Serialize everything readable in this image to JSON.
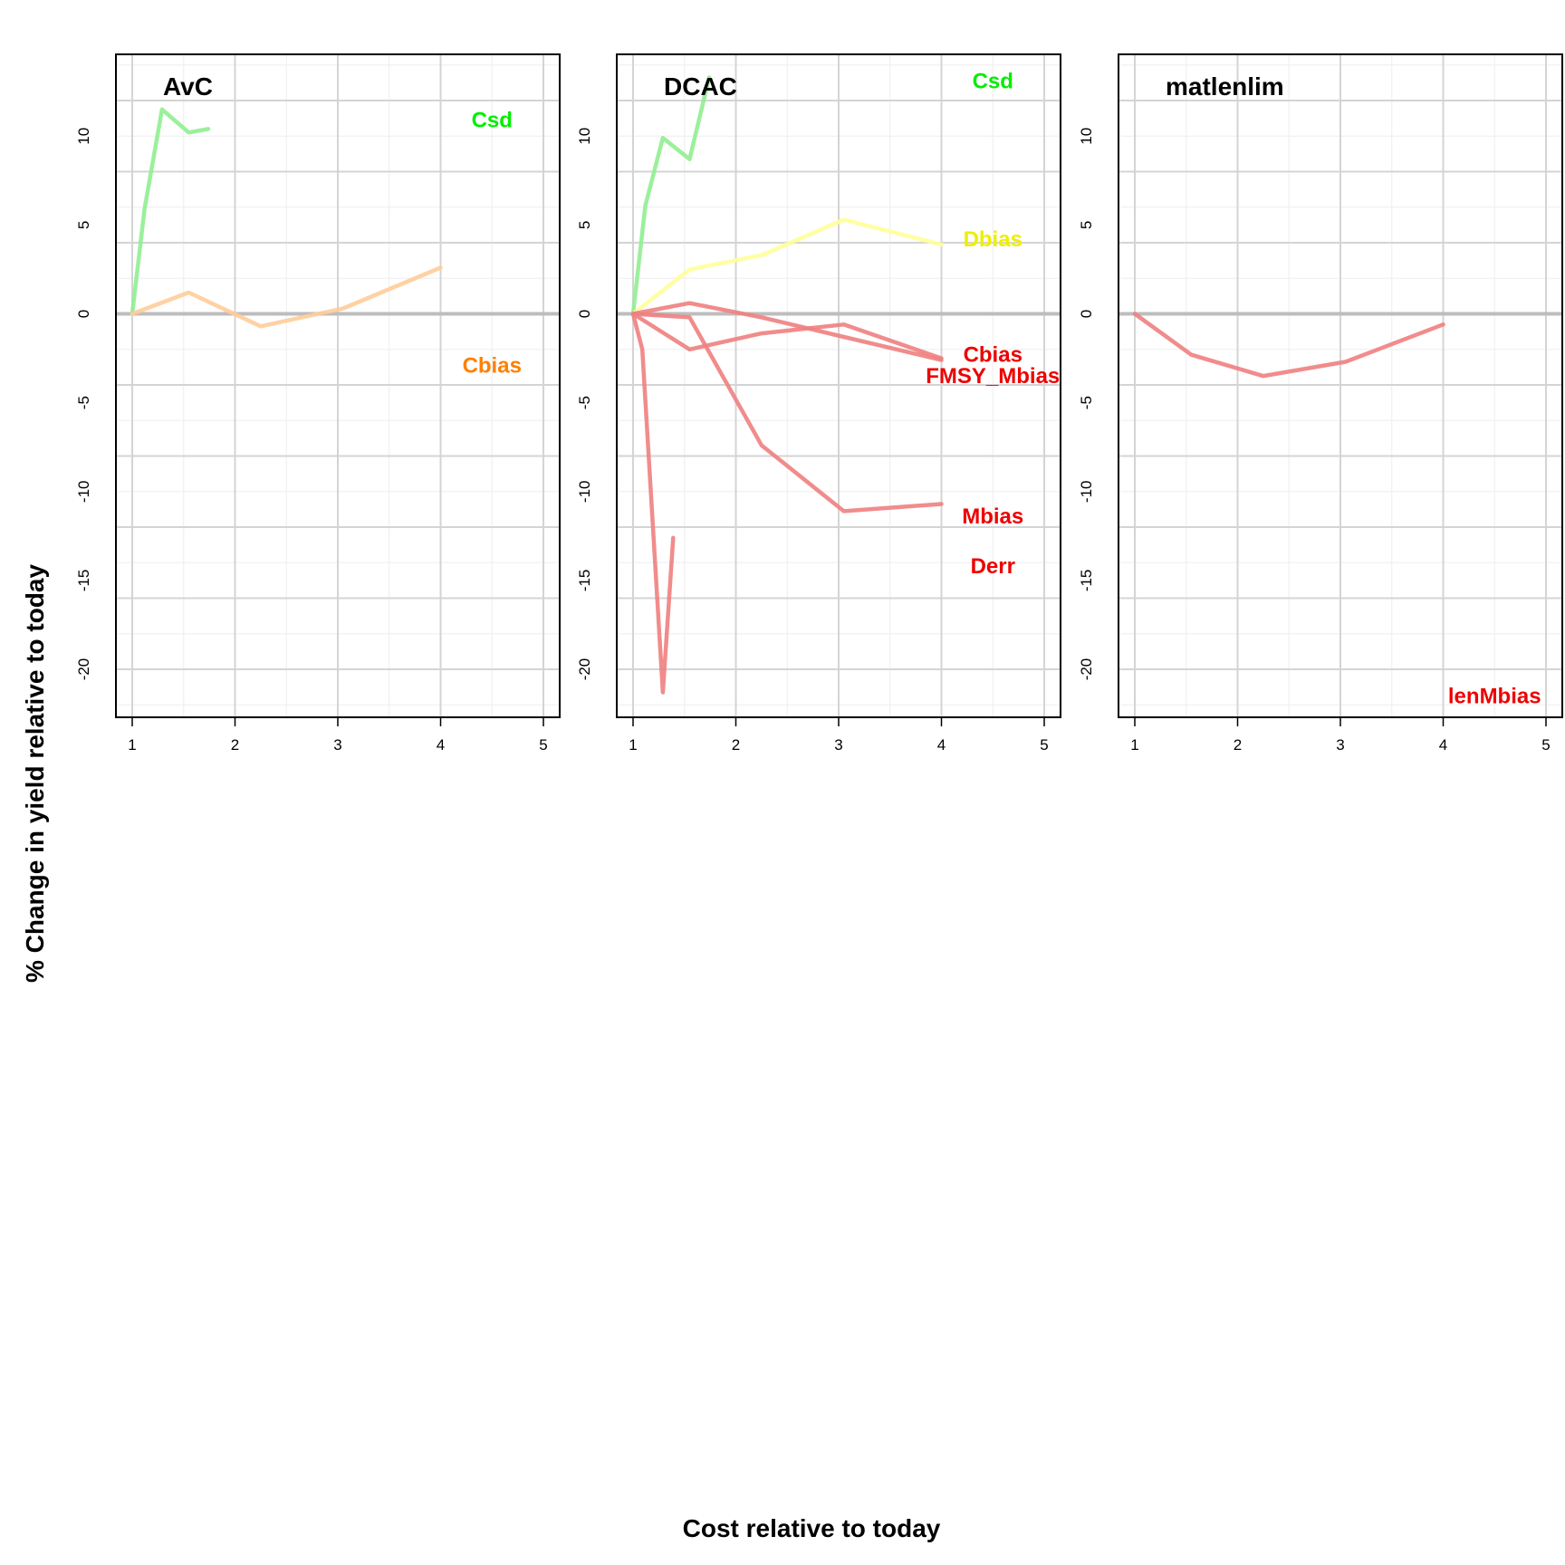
{
  "xlabel": "Cost relative to today",
  "ylabel": "% Change in yield relative to today",
  "chart_data": [
    {
      "type": "line",
      "title": "AvC",
      "xlim": [
        1,
        5
      ],
      "ylim": [
        -22.7,
        14.6
      ],
      "x_ticks": [
        1,
        2,
        3,
        4,
        5
      ],
      "y_ticks": [
        -20,
        -15,
        -10,
        -5,
        0,
        5,
        10
      ],
      "series": [
        {
          "name": "Csd",
          "color": "#90EE90",
          "label_color": "#00EE00",
          "label_pos": [
            4.5,
            10.9
          ],
          "x": [
            1.0,
            1.12,
            1.29,
            1.55,
            1.74
          ],
          "y": [
            0.0,
            5.9,
            11.5,
            10.2,
            10.4
          ]
        },
        {
          "name": "Cbias",
          "color": "#FFCC99",
          "label_color": "#FF7F00",
          "label_pos": [
            4.5,
            -2.9
          ],
          "x": [
            1.0,
            1.55,
            2.25,
            3.05,
            4.0
          ],
          "y": [
            0.0,
            1.2,
            -0.7,
            0.3,
            2.6
          ]
        }
      ]
    },
    {
      "type": "line",
      "title": "DCAC",
      "xlim": [
        1,
        5
      ],
      "ylim": [
        -22.7,
        14.6
      ],
      "x_ticks": [
        1,
        2,
        3,
        4,
        5
      ],
      "y_ticks": [
        -20,
        -15,
        -10,
        -5,
        0,
        5,
        10
      ],
      "series": [
        {
          "name": "Csd",
          "color": "#90EE90",
          "label_color": "#00EE00",
          "label_pos": [
            4.5,
            13.1
          ],
          "x": [
            1.0,
            1.12,
            1.29,
            1.55,
            1.74
          ],
          "y": [
            0.0,
            6.1,
            9.9,
            8.7,
            13.3
          ]
        },
        {
          "name": "Dbias",
          "color": "#FFFF99",
          "label_color": "#EEEE00",
          "label_pos": [
            4.5,
            4.2
          ],
          "x": [
            1.0,
            1.55,
            2.25,
            3.05,
            4.0
          ],
          "y": [
            0.0,
            2.5,
            3.3,
            5.3,
            3.9
          ]
        },
        {
          "name": "Cbias",
          "color": "#F08080",
          "label_color": "#EE0000",
          "label_pos": [
            4.5,
            -2.3
          ],
          "x": [
            1.0,
            1.55,
            2.25,
            3.05,
            4.0
          ],
          "y": [
            0.0,
            0.6,
            -0.2,
            -1.3,
            -2.6
          ]
        },
        {
          "name": "FMSY_Mbias",
          "color": "#F08080",
          "label_color": "#EE0000",
          "label_pos": [
            4.5,
            -3.5
          ],
          "x": [
            1.0,
            1.55,
            2.25,
            3.05,
            4.0
          ],
          "y": [
            0.0,
            -2.0,
            -1.1,
            -0.6,
            -2.5
          ]
        },
        {
          "name": "Mbias",
          "color": "#F08080",
          "label_color": "#EE0000",
          "label_pos": [
            4.5,
            -11.4
          ],
          "x": [
            1.0,
            1.55,
            2.25,
            3.05,
            4.0
          ],
          "y": [
            0.0,
            -0.2,
            -7.4,
            -11.1,
            -10.7
          ]
        },
        {
          "name": "Derr",
          "color": "#F08080",
          "label_color": "#EE0000",
          "label_pos": [
            4.5,
            -14.2
          ],
          "x": [
            1.0,
            1.09,
            1.29,
            1.39
          ],
          "y": [
            0.0,
            -2.0,
            -21.3,
            -12.6
          ]
        }
      ]
    },
    {
      "type": "line",
      "title": "matlenlim",
      "xlim": [
        1,
        5
      ],
      "ylim": [
        -22.7,
        14.6
      ],
      "x_ticks": [
        1,
        2,
        3,
        4,
        5
      ],
      "y_ticks": [
        -20,
        -15,
        -10,
        -5,
        0,
        5,
        10
      ],
      "series": [
        {
          "name": "lenMbias",
          "color": "#F08080",
          "label_color": "#EE0000",
          "label_pos": [
            4.5,
            -21.5
          ],
          "x": [
            1.0,
            1.55,
            2.25,
            3.05,
            4.0
          ],
          "y": [
            0.0,
            -2.3,
            -3.5,
            -2.7,
            -0.6
          ]
        }
      ]
    }
  ]
}
